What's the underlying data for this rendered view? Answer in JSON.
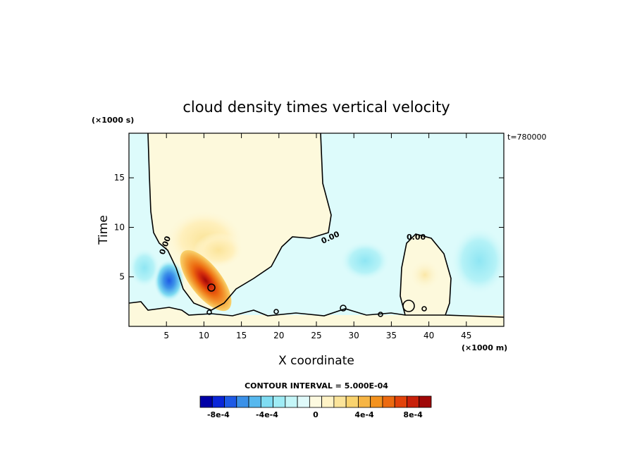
{
  "chart_data": {
    "type": "heatmap",
    "title": "cloud density times vertical velocity",
    "xlabel": "X coordinate",
    "ylabel": "Time",
    "x_scale_label": "(×1000 m)",
    "y_scale_label": "(×1000 s)",
    "time_label": "t=780000",
    "xlim": [
      0,
      50
    ],
    "ylim": [
      0,
      19.5
    ],
    "x_ticks": [
      5,
      10,
      15,
      20,
      25,
      30,
      35,
      40,
      45
    ],
    "y_ticks": [
      5,
      10,
      15
    ],
    "contour_interval_label": "CONTOUR INTERVAL = 5.000E-04",
    "contour_line_labels": [
      "0.00",
      "0.00",
      "0.00"
    ],
    "colorbar": {
      "levels": [
        -0.0009,
        -0.0008,
        -0.0007,
        -0.0006,
        -0.0005,
        -0.0004,
        -0.0003,
        -0.0002,
        -0.0001,
        0,
        0.0001,
        0.0002,
        0.0003,
        0.0004,
        0.0005,
        0.0006,
        0.0007,
        0.0008,
        0.0009
      ],
      "colors": [
        "#0000a6",
        "#0a26d8",
        "#1e5ae6",
        "#3b91e8",
        "#57b8ee",
        "#7fdcf2",
        "#9fecf5",
        "#c4f6f8",
        "#e0fafa",
        "#fdfae0",
        "#fff3c6",
        "#fbe49a",
        "#f9d36e",
        "#f6b545",
        "#f3921e",
        "#ec6a10",
        "#e2420a",
        "#c8200a",
        "#a00808"
      ],
      "tick_labels": [
        "-8e-4",
        "-4e-4",
        "0",
        "4e-4",
        "8e-4"
      ],
      "tick_values": [
        -0.0008,
        -0.0004,
        0,
        0.0004,
        0.0008
      ]
    },
    "field_colors": {
      "zero_pos": "#fdf9dc",
      "zero_neg": "#ddfbfb"
    },
    "features": [
      {
        "name": "updraft-core",
        "x": 11,
        "y": 4.5,
        "value": 0.0008
      },
      {
        "name": "downdraft-core",
        "x": 5.5,
        "y": 4.5,
        "value": -0.0006
      },
      {
        "name": "upper-positive-lobe",
        "x": 9.5,
        "y": 8.5,
        "value": 0.00025
      },
      {
        "name": "right-negative-patch",
        "x": 48,
        "y": 8.5,
        "value": -0.0002
      },
      {
        "name": "mid-negative-patch",
        "x": 32,
        "y": 6.5,
        "value": -0.0002
      },
      {
        "name": "small-positive-patch",
        "x": 39.5,
        "y": 5,
        "value": 0.0002
      }
    ]
  }
}
